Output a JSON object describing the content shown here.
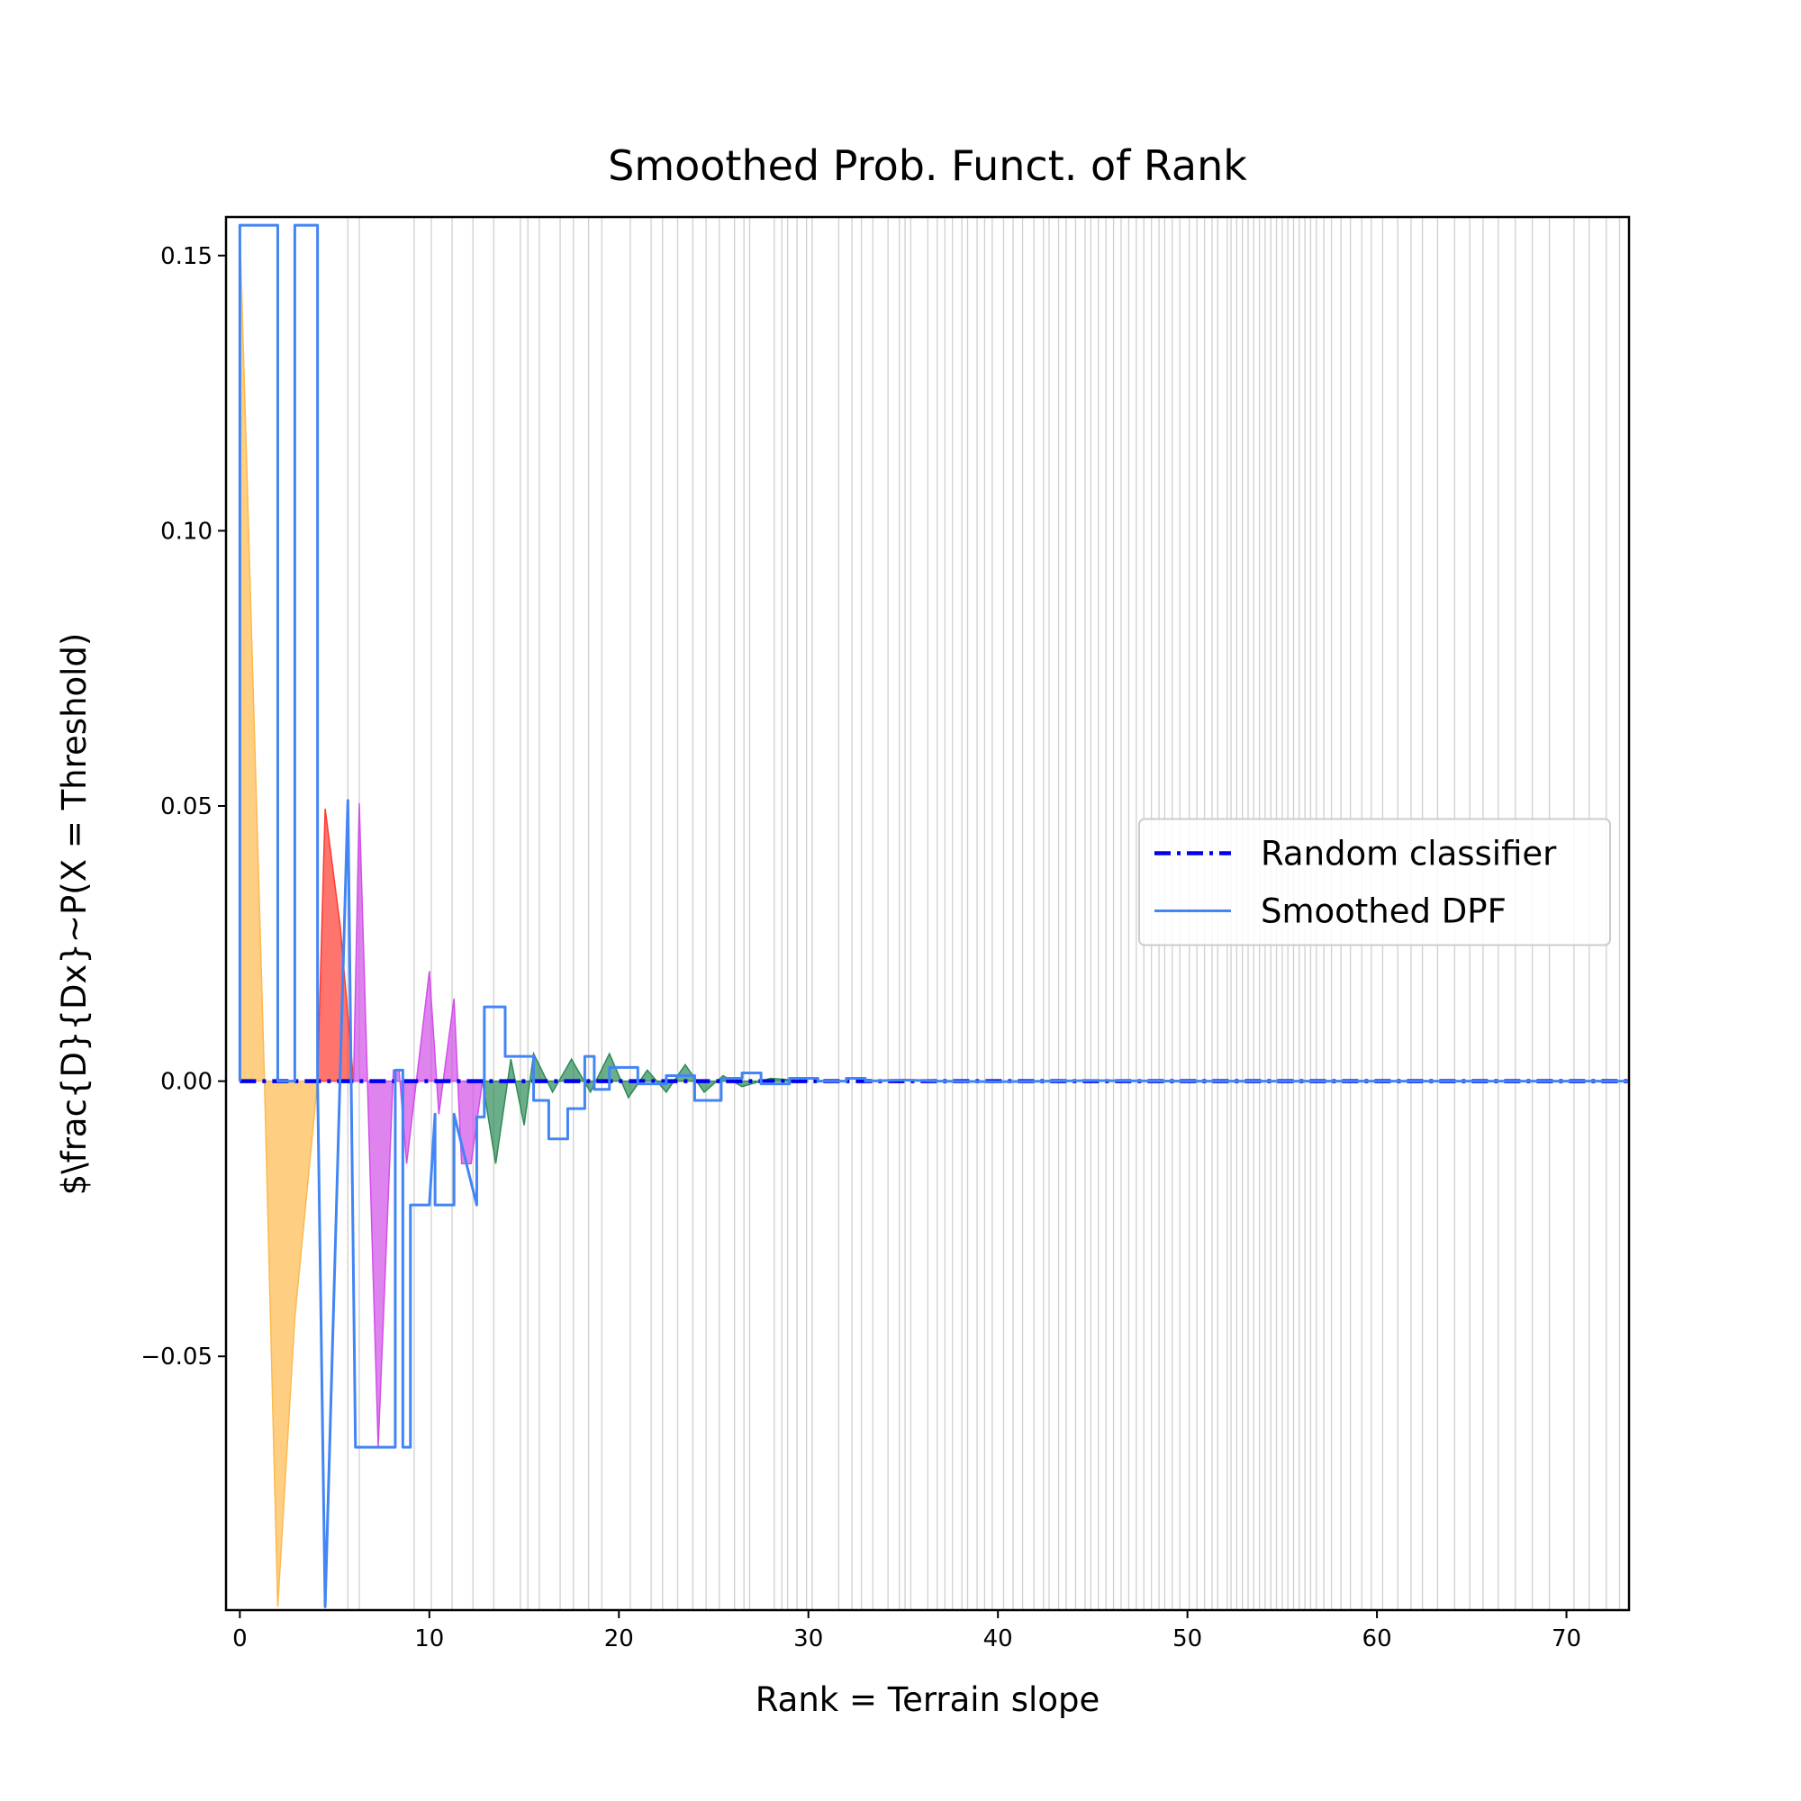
{
  "chart_data": {
    "type": "line",
    "title": "Smoothed Prob. Funct. of Rank",
    "xlabel": "Rank = Terrain slope",
    "ylabel": "$\\frac{D}{Dx}~P(X = Threshold)",
    "xlim": [
      -0.73,
      73.3
    ],
    "ylim": [
      -0.0961,
      0.157
    ],
    "xticks": [
      0,
      10,
      20,
      30,
      40,
      50,
      60,
      70
    ],
    "yticks": [
      {
        "value": -0.05,
        "label": "−0.05"
      },
      {
        "value": 0,
        "label": "0.00"
      },
      {
        "value": 0.05,
        "label": "0.05"
      },
      {
        "value": 0.1,
        "label": "0.10"
      },
      {
        "value": 0.15,
        "label": "0.15"
      }
    ],
    "legend": "center right",
    "series": [
      {
        "name": "Random classifier",
        "color": "#0000ee",
        "style": "dashdot",
        "x": [
          0,
          73.3
        ],
        "values": [
          0,
          0
        ]
      },
      {
        "name": "Smoothed DPF",
        "color": "#4285f4",
        "style": "solid",
        "x": [
          0,
          0,
          2,
          2,
          2.9,
          2.9,
          4.1,
          4.1,
          4.5,
          5.7,
          6.1,
          8.2,
          8.2,
          8.6,
          8.6,
          9,
          9,
          10,
          10.3,
          10.3,
          11.3,
          11.3,
          12.5,
          12.5,
          12.9,
          12.9,
          14,
          14,
          15.5,
          15.5,
          16.3,
          16.3,
          17.3,
          17.3,
          18.2,
          18.2,
          18.7,
          18.7,
          19.5,
          19.5,
          21,
          21,
          22.5,
          22.5,
          24,
          24,
          25.4,
          25.4,
          26.5,
          26.5,
          27.5,
          27.5,
          29,
          29,
          30.5,
          30.5,
          32,
          32,
          33,
          33,
          35,
          37,
          40,
          45,
          50,
          55,
          60,
          65,
          70,
          73.3
        ],
        "values": [
          0,
          0.1555,
          0.1555,
          0,
          0,
          0.1555,
          0.1555,
          0,
          -0.0955,
          0.051,
          -0.0665,
          -0.0665,
          0.002,
          0.002,
          -0.0665,
          -0.0665,
          -0.0225,
          -0.0225,
          -0.006,
          -0.0225,
          -0.0225,
          -0.006,
          -0.0225,
          -0.0065,
          -0.0065,
          0.0135,
          0.0135,
          0.0045,
          0.0045,
          -0.0035,
          -0.0035,
          -0.0105,
          -0.0105,
          -0.005,
          -0.005,
          0.0045,
          0.0045,
          -0.0015,
          -0.0015,
          0.0025,
          0.0025,
          -0.0005,
          -0.0005,
          0.001,
          0.001,
          -0.0035,
          -0.0035,
          0.0005,
          0.0005,
          0.0015,
          0.0015,
          -0.0005,
          -0.0005,
          0.0005,
          0.0005,
          0,
          0,
          0.0005,
          0.0005,
          0,
          0.0002,
          0,
          -0.0001,
          0.0001,
          0,
          0,
          0,
          0,
          0,
          0
        ]
      }
    ],
    "fills": [
      {
        "color": "#fdb94e",
        "x": [
          0,
          1.3,
          2,
          2.9,
          4.1
        ],
        "values": [
          0.155,
          0,
          -0.0955,
          -0.043,
          0
        ]
      },
      {
        "color": "#ff3b2f",
        "x": [
          4.1,
          4.5,
          5.3,
          6
        ],
        "values": [
          0,
          0.0495,
          0.028,
          0
        ]
      },
      {
        "color": "#d14fe8",
        "x": [
          6,
          6.3,
          7.3,
          8.1,
          8.4,
          8.8,
          10,
          10.5,
          11.3,
          11.7,
          12.2,
          12.8
        ],
        "values": [
          0,
          0.0505,
          -0.0665,
          0.002,
          0.002,
          -0.015,
          0.02,
          -0.006,
          0.015,
          -0.015,
          -0.015,
          0
        ]
      },
      {
        "color": "#2e8b57",
        "x": [
          12.8,
          13.5,
          14.3,
          15,
          15.5,
          16.5,
          17.5,
          18.5,
          19.5,
          20.5,
          21.5,
          22.5,
          23.5,
          24.5,
          25.5,
          26.5,
          28,
          30
        ],
        "values": [
          0,
          -0.015,
          0.004,
          -0.008,
          0.005,
          -0.002,
          0.004,
          -0.002,
          0.005,
          -0.003,
          0.002,
          -0.002,
          0.003,
          -0.002,
          0.001,
          -0.001,
          0.0005,
          0
        ]
      }
    ],
    "rug": {
      "color": "#bbbbbb",
      "x": [
        5.7,
        6.3,
        9.2,
        10.1,
        11.2,
        12.3,
        13.4,
        14.8,
        15.2,
        15.8,
        16.9,
        17.6,
        18.4,
        19.1,
        20.6,
        21.7,
        22.3,
        23.1,
        23.9,
        24.6,
        25.3,
        26.1,
        26.6,
        26.9,
        28.2,
        28.6,
        28.9,
        29.4,
        29.9,
        30.2,
        31.6,
        32.3,
        32.8,
        33.4,
        34.2,
        34.8,
        35.1,
        35.4,
        36.3,
        36.8,
        37.2,
        37.6,
        38.1,
        38.4,
        38.9,
        39.3,
        39.7,
        40.3,
        40.8,
        41.3,
        41.9,
        42.4,
        42.7,
        43.2,
        43.6,
        44.1,
        44.6,
        44.9,
        45.3,
        45.7,
        46.1,
        46.5,
        46.9,
        47.3,
        47.7,
        48.1,
        48.5,
        48.8,
        49.2,
        49.6,
        50.1,
        50.5,
        50.9,
        51.3,
        51.6,
        52.1,
        52.3,
        52.6,
        52.9,
        53.2,
        53.5,
        53.8,
        54.1,
        54.4,
        54.7,
        55.0,
        55.3,
        55.6,
        55.9,
        56.2,
        56.5,
        56.8,
        57.2,
        57.6,
        58.1,
        58.6,
        59.2,
        59.7,
        60.3,
        61.1,
        61.8,
        62.4,
        63.2,
        64.1,
        64.9,
        65.6,
        66.4,
        67.3,
        68.2,
        69.1,
        70.4,
        71.2,
        72.1,
        72.8
      ]
    }
  }
}
